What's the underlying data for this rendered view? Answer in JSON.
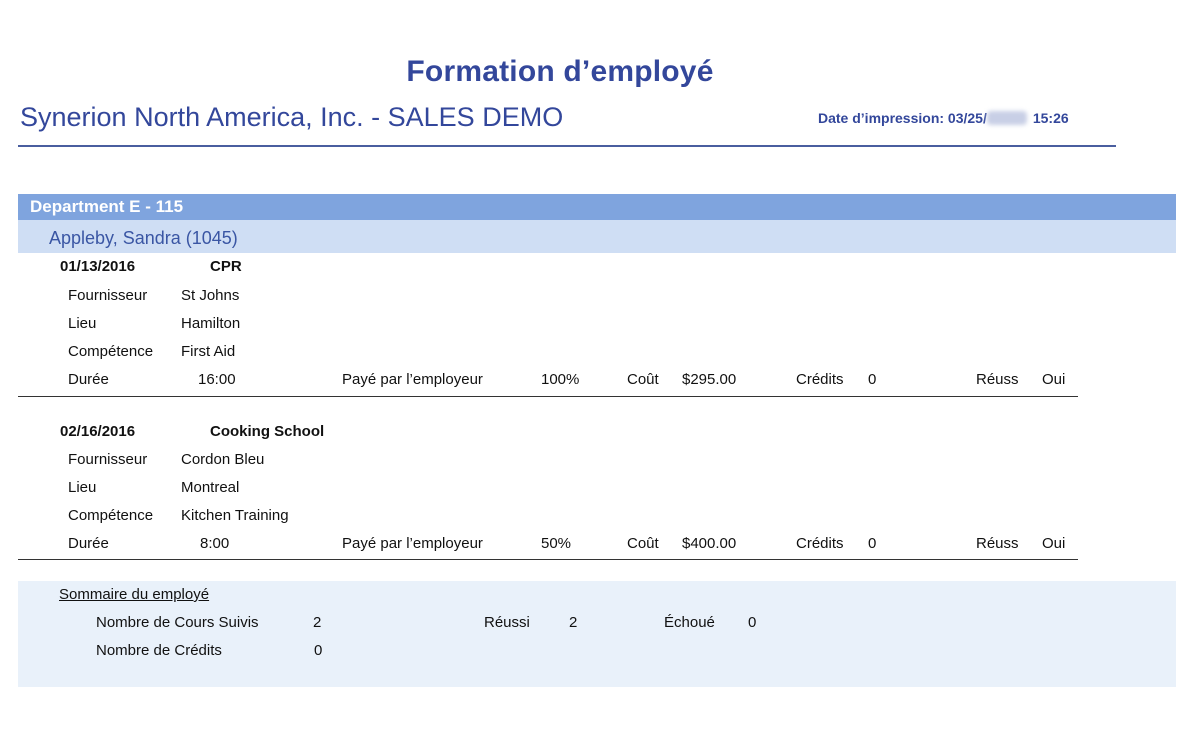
{
  "report": {
    "title": "Formation d’employé",
    "company": "Synerion North America, Inc. - SALES DEMO",
    "print_label": "Date d’impression: 03/25/",
    "print_time": "15:26"
  },
  "department": "Department E - 115",
  "employee": "Appleby, Sandra (1045)",
  "labels": {
    "provider": "Fournisseur",
    "location": "Lieu",
    "skill": "Compétence",
    "duration": "Durée",
    "paid_by_employer": "Payé par l’employeur",
    "cost": "Coût",
    "credits": "Crédits",
    "passed": "Réuss"
  },
  "courses": [
    {
      "date": "01/13/2016",
      "name": "CPR",
      "provider": "St Johns",
      "location": "Hamilton",
      "skill": "First Aid",
      "duration": "16:00",
      "paid_pct": "100%",
      "cost": "$295.00",
      "credits": "0",
      "passed": "Oui"
    },
    {
      "date": "02/16/2016",
      "name": "Cooking School",
      "provider": "Cordon Bleu",
      "location": "Montreal",
      "skill": "Kitchen Training",
      "duration": "8:00",
      "paid_pct": "50%",
      "cost": "$400.00",
      "credits": "0",
      "passed": "Oui"
    }
  ],
  "summary": {
    "heading": "Sommaire du employé",
    "courses_label": "Nombre de Cours Suivis",
    "courses_value": "2",
    "passed_label": "Réussi",
    "passed_value": "2",
    "failed_label": "Échoué",
    "failed_value": "0",
    "credits_label": "Nombre de Crédits",
    "credits_value": "0"
  }
}
